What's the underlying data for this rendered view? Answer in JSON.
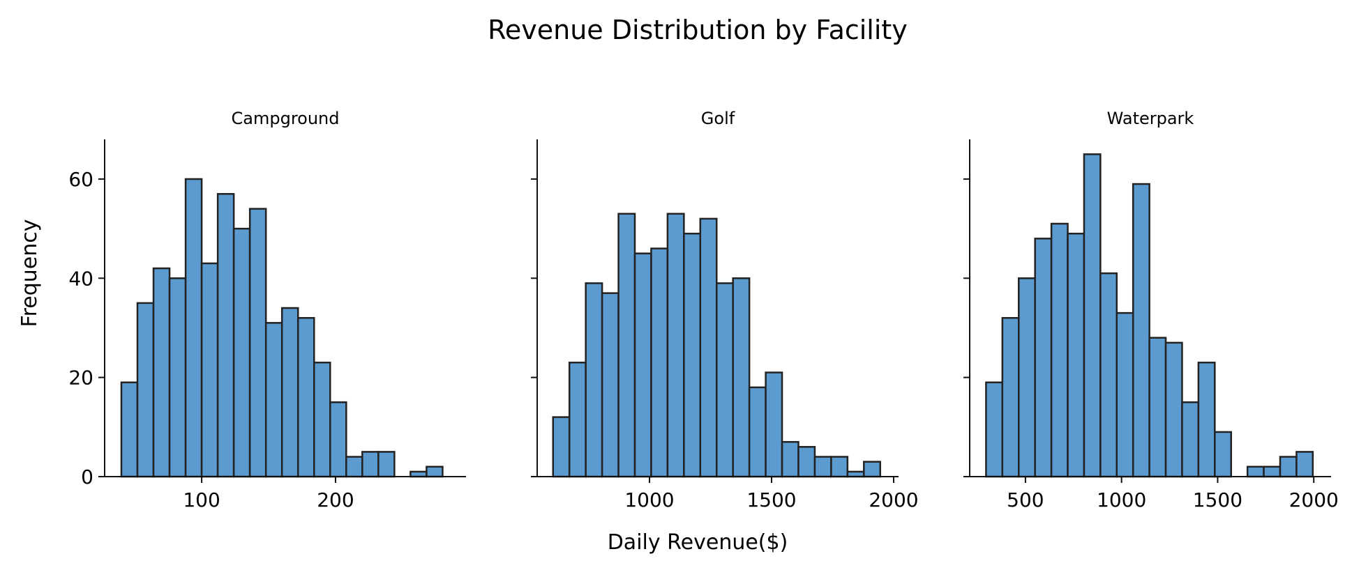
{
  "title": "Revenue Distribution by Facility",
  "xlabel": "Daily Revenue($)",
  "ylabel": "Frequency",
  "colors": {
    "bar_fill": "#5b9bd0",
    "bar_edge": "#222222"
  },
  "chart_data": [
    {
      "type": "bar",
      "title": "Campground",
      "xlim": [
        27.5,
        297.5
      ],
      "ylim": [
        0,
        68
      ],
      "xticks": [
        100,
        200
      ],
      "yticks": [
        0,
        20,
        40,
        60
      ],
      "bins": [
        {
          "x0": 40,
          "x1": 52,
          "count": 19
        },
        {
          "x0": 52,
          "x1": 64,
          "count": 35
        },
        {
          "x0": 64,
          "x1": 76,
          "count": 42
        },
        {
          "x0": 76,
          "x1": 88,
          "count": 40
        },
        {
          "x0": 88,
          "x1": 100,
          "count": 60
        },
        {
          "x0": 100,
          "x1": 112,
          "count": 43
        },
        {
          "x0": 112,
          "x1": 124,
          "count": 57
        },
        {
          "x0": 124,
          "x1": 136,
          "count": 50
        },
        {
          "x0": 136,
          "x1": 148,
          "count": 54
        },
        {
          "x0": 148,
          "x1": 160,
          "count": 31
        },
        {
          "x0": 160,
          "x1": 172,
          "count": 34
        },
        {
          "x0": 172,
          "x1": 184,
          "count": 32
        },
        {
          "x0": 184,
          "x1": 196,
          "count": 23
        },
        {
          "x0": 196,
          "x1": 208,
          "count": 15
        },
        {
          "x0": 208,
          "x1": 220,
          "count": 4
        },
        {
          "x0": 220,
          "x1": 232,
          "count": 5
        },
        {
          "x0": 232,
          "x1": 244,
          "count": 5
        },
        {
          "x0": 244,
          "x1": 256,
          "count": 0
        },
        {
          "x0": 256,
          "x1": 268,
          "count": 1
        },
        {
          "x0": 268,
          "x1": 280,
          "count": 2
        }
      ]
    },
    {
      "type": "bar",
      "title": "Golf",
      "xlim": [
        540,
        2020
      ],
      "ylim": [
        0,
        68
      ],
      "xticks": [
        1000,
        1500,
        2000
      ],
      "yticks": [
        0,
        20,
        40,
        60
      ],
      "bins": [
        {
          "x0": 605,
          "x1": 672,
          "count": 12
        },
        {
          "x0": 672,
          "x1": 739,
          "count": 23
        },
        {
          "x0": 739,
          "x1": 806,
          "count": 39
        },
        {
          "x0": 806,
          "x1": 873,
          "count": 37
        },
        {
          "x0": 873,
          "x1": 940,
          "count": 53
        },
        {
          "x0": 940,
          "x1": 1007,
          "count": 45
        },
        {
          "x0": 1007,
          "x1": 1074,
          "count": 46
        },
        {
          "x0": 1074,
          "x1": 1141,
          "count": 53
        },
        {
          "x0": 1141,
          "x1": 1208,
          "count": 49
        },
        {
          "x0": 1208,
          "x1": 1275,
          "count": 52
        },
        {
          "x0": 1275,
          "x1": 1342,
          "count": 39
        },
        {
          "x0": 1342,
          "x1": 1409,
          "count": 40
        },
        {
          "x0": 1409,
          "x1": 1476,
          "count": 18
        },
        {
          "x0": 1476,
          "x1": 1543,
          "count": 21
        },
        {
          "x0": 1543,
          "x1": 1610,
          "count": 7
        },
        {
          "x0": 1610,
          "x1": 1677,
          "count": 6
        },
        {
          "x0": 1677,
          "x1": 1744,
          "count": 4
        },
        {
          "x0": 1744,
          "x1": 1811,
          "count": 4
        },
        {
          "x0": 1811,
          "x1": 1878,
          "count": 1
        },
        {
          "x0": 1878,
          "x1": 1945,
          "count": 3
        }
      ]
    },
    {
      "type": "bar",
      "title": "Waterpark",
      "xlim": [
        210,
        2090
      ],
      "ylim": [
        0,
        68
      ],
      "xticks": [
        500,
        1000,
        1500,
        2000
      ],
      "yticks": [
        0,
        20,
        40,
        60
      ],
      "bins": [
        {
          "x0": 295,
          "x1": 380,
          "count": 19
        },
        {
          "x0": 380,
          "x1": 465,
          "count": 32
        },
        {
          "x0": 465,
          "x1": 550,
          "count": 40
        },
        {
          "x0": 550,
          "x1": 635,
          "count": 48
        },
        {
          "x0": 635,
          "x1": 720,
          "count": 51
        },
        {
          "x0": 720,
          "x1": 805,
          "count": 49
        },
        {
          "x0": 805,
          "x1": 890,
          "count": 65
        },
        {
          "x0": 890,
          "x1": 975,
          "count": 41
        },
        {
          "x0": 975,
          "x1": 1060,
          "count": 33
        },
        {
          "x0": 1060,
          "x1": 1145,
          "count": 59
        },
        {
          "x0": 1145,
          "x1": 1230,
          "count": 28
        },
        {
          "x0": 1230,
          "x1": 1315,
          "count": 27
        },
        {
          "x0": 1315,
          "x1": 1400,
          "count": 15
        },
        {
          "x0": 1400,
          "x1": 1485,
          "count": 23
        },
        {
          "x0": 1485,
          "x1": 1570,
          "count": 9
        },
        {
          "x0": 1570,
          "x1": 1655,
          "count": 0
        },
        {
          "x0": 1655,
          "x1": 1740,
          "count": 2
        },
        {
          "x0": 1740,
          "x1": 1825,
          "count": 2
        },
        {
          "x0": 1825,
          "x1": 1910,
          "count": 4
        },
        {
          "x0": 1910,
          "x1": 1995,
          "count": 5
        }
      ]
    }
  ]
}
